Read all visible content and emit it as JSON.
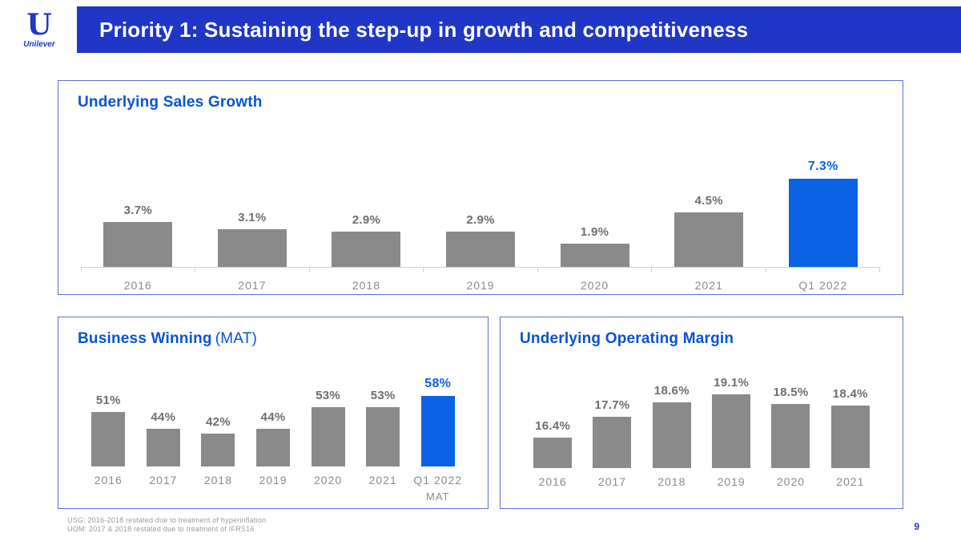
{
  "slide": {
    "title": "Priority 1: Sustaining the step-up in growth and competitiveness",
    "page_number": "9",
    "footnotes": [
      "USG: 2016-2018 restated due to treatment of hyperinflation",
      "UOM: 2017 & 2018 restated due to treatment of IFRS16"
    ],
    "logo": {
      "monogram": "U",
      "wordmark": "Unilever"
    }
  },
  "colors": {
    "header_bg": "#1f36c7",
    "accent": "#0c62e4",
    "title_blue": "#0653d3",
    "bar_grey": "#8a8a8a"
  },
  "chart_data": [
    {
      "type": "bar",
      "title": "Underlying Sales Growth",
      "categories": [
        "2016",
        "2017",
        "2018",
        "2019",
        "2020",
        "2021",
        "Q1 2022"
      ],
      "values": [
        3.7,
        3.1,
        2.9,
        2.9,
        1.9,
        4.5,
        7.3
      ],
      "labels": [
        "3.7%",
        "3.1%",
        "2.9%",
        "2.9%",
        "1.9%",
        "4.5%",
        "7.3%"
      ],
      "highlight_index": 6,
      "highlight_color": "#0c62e4",
      "bar_color": "#8a8a8a",
      "ylim": [
        0,
        8
      ],
      "axis": true,
      "legend": false,
      "grid": false
    },
    {
      "type": "bar",
      "title": "Business Winning",
      "title_suffix": "(MAT)",
      "categories": [
        "2016",
        "2017",
        "2018",
        "2019",
        "2020",
        "2021",
        "Q1 2022"
      ],
      "sub_categories": [
        "",
        "",
        "",
        "",
        "",
        "",
        "MAT"
      ],
      "values": [
        51,
        44,
        42,
        44,
        53,
        53,
        58
      ],
      "labels": [
        "51%",
        "44%",
        "42%",
        "44%",
        "53%",
        "53%",
        "58%"
      ],
      "highlight_index": 6,
      "highlight_color": "#0c62e4",
      "bar_color": "#8a8a8a",
      "ylim": [
        28,
        62
      ],
      "axis": false,
      "legend": false,
      "grid": false
    },
    {
      "type": "bar",
      "title": "Underlying Operating Margin",
      "categories": [
        "2016",
        "2017",
        "2018",
        "2019",
        "2020",
        "2021"
      ],
      "values": [
        16.4,
        17.7,
        18.6,
        19.1,
        18.5,
        18.4
      ],
      "labels": [
        "16.4%",
        "17.7%",
        "18.6%",
        "19.1%",
        "18.5%",
        "18.4%"
      ],
      "highlight_index": -1,
      "bar_color": "#8a8a8a",
      "ylim": [
        14.5,
        20
      ],
      "axis": false,
      "legend": false,
      "grid": false
    }
  ]
}
